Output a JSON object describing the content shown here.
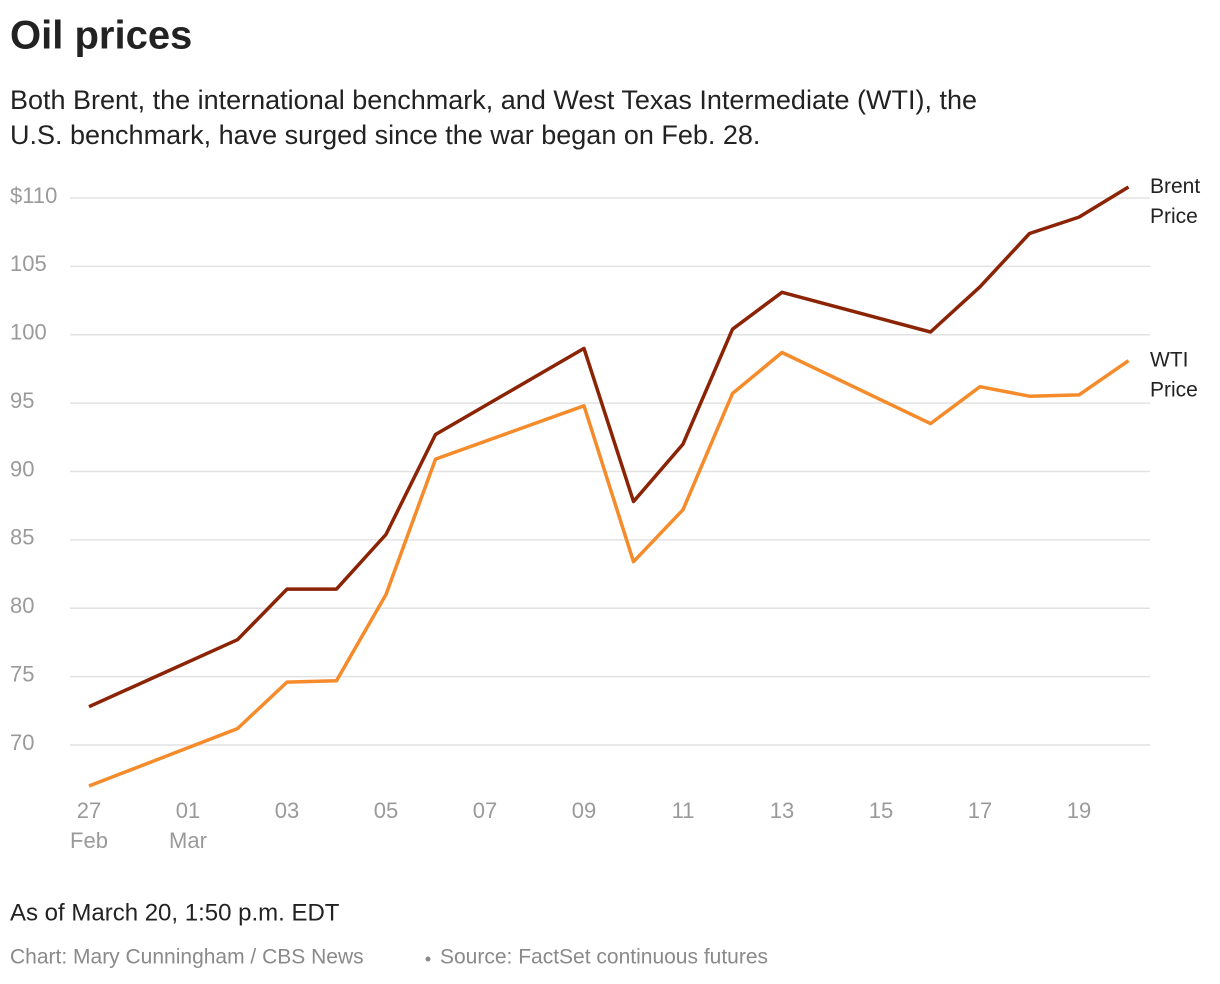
{
  "chart_data": {
    "type": "line",
    "title": "Oil prices",
    "subtitle": [
      "Both Brent, the international benchmark, and West Texas Intermediate (WTI), the",
      "U.S. benchmark, have surged since the war began on Feb. 28."
    ],
    "x": [
      "02-27",
      "03-02",
      "03-03",
      "03-04",
      "03-05",
      "03-06",
      "03-09",
      "03-10",
      "03-11",
      "03-12",
      "03-13",
      "03-16",
      "03-17",
      "03-18",
      "03-19",
      "03-20"
    ],
    "series": [
      {
        "name": "Brent Price",
        "color": "#8b2305",
        "values": [
          72.8,
          77.7,
          81.4,
          81.4,
          85.4,
          92.7,
          99.0,
          87.8,
          92.0,
          100.4,
          103.1,
          100.2,
          103.5,
          107.4,
          108.6,
          110.8
        ]
      },
      {
        "name": "WTI Price",
        "color": "#f58b2a",
        "values": [
          67.0,
          71.2,
          74.6,
          74.7,
          81.0,
          90.9,
          94.8,
          83.4,
          87.2,
          95.7,
          98.7,
          93.5,
          96.2,
          95.5,
          95.6,
          98.1
        ]
      }
    ],
    "xlim": [
      "02-27",
      "03-20"
    ],
    "xticks": [
      {
        "value": "02-27",
        "label": "27 Feb"
      },
      {
        "value": "03-01",
        "label": "01 Mar"
      },
      {
        "value": "03-03",
        "label": "03"
      },
      {
        "value": "03-05",
        "label": "05"
      },
      {
        "value": "03-07",
        "label": "07"
      },
      {
        "value": "03-09",
        "label": "09"
      },
      {
        "value": "03-11",
        "label": "11"
      },
      {
        "value": "03-13",
        "label": "13"
      },
      {
        "value": "03-15",
        "label": "15"
      },
      {
        "value": "03-17",
        "label": "17"
      },
      {
        "value": "03-19",
        "label": "19"
      }
    ],
    "ylim": [
      67,
      110.8
    ],
    "yticks": [
      70,
      75,
      80,
      85,
      90,
      95,
      100,
      105,
      {
        "value": 110,
        "label": "$110"
      }
    ],
    "grid": true,
    "note": "As of March 20, 1:50 p.m. EDT",
    "credit": "Chart: Mary Cunningham / CBS News",
    "source": "Source: FactSet continuous futures"
  }
}
